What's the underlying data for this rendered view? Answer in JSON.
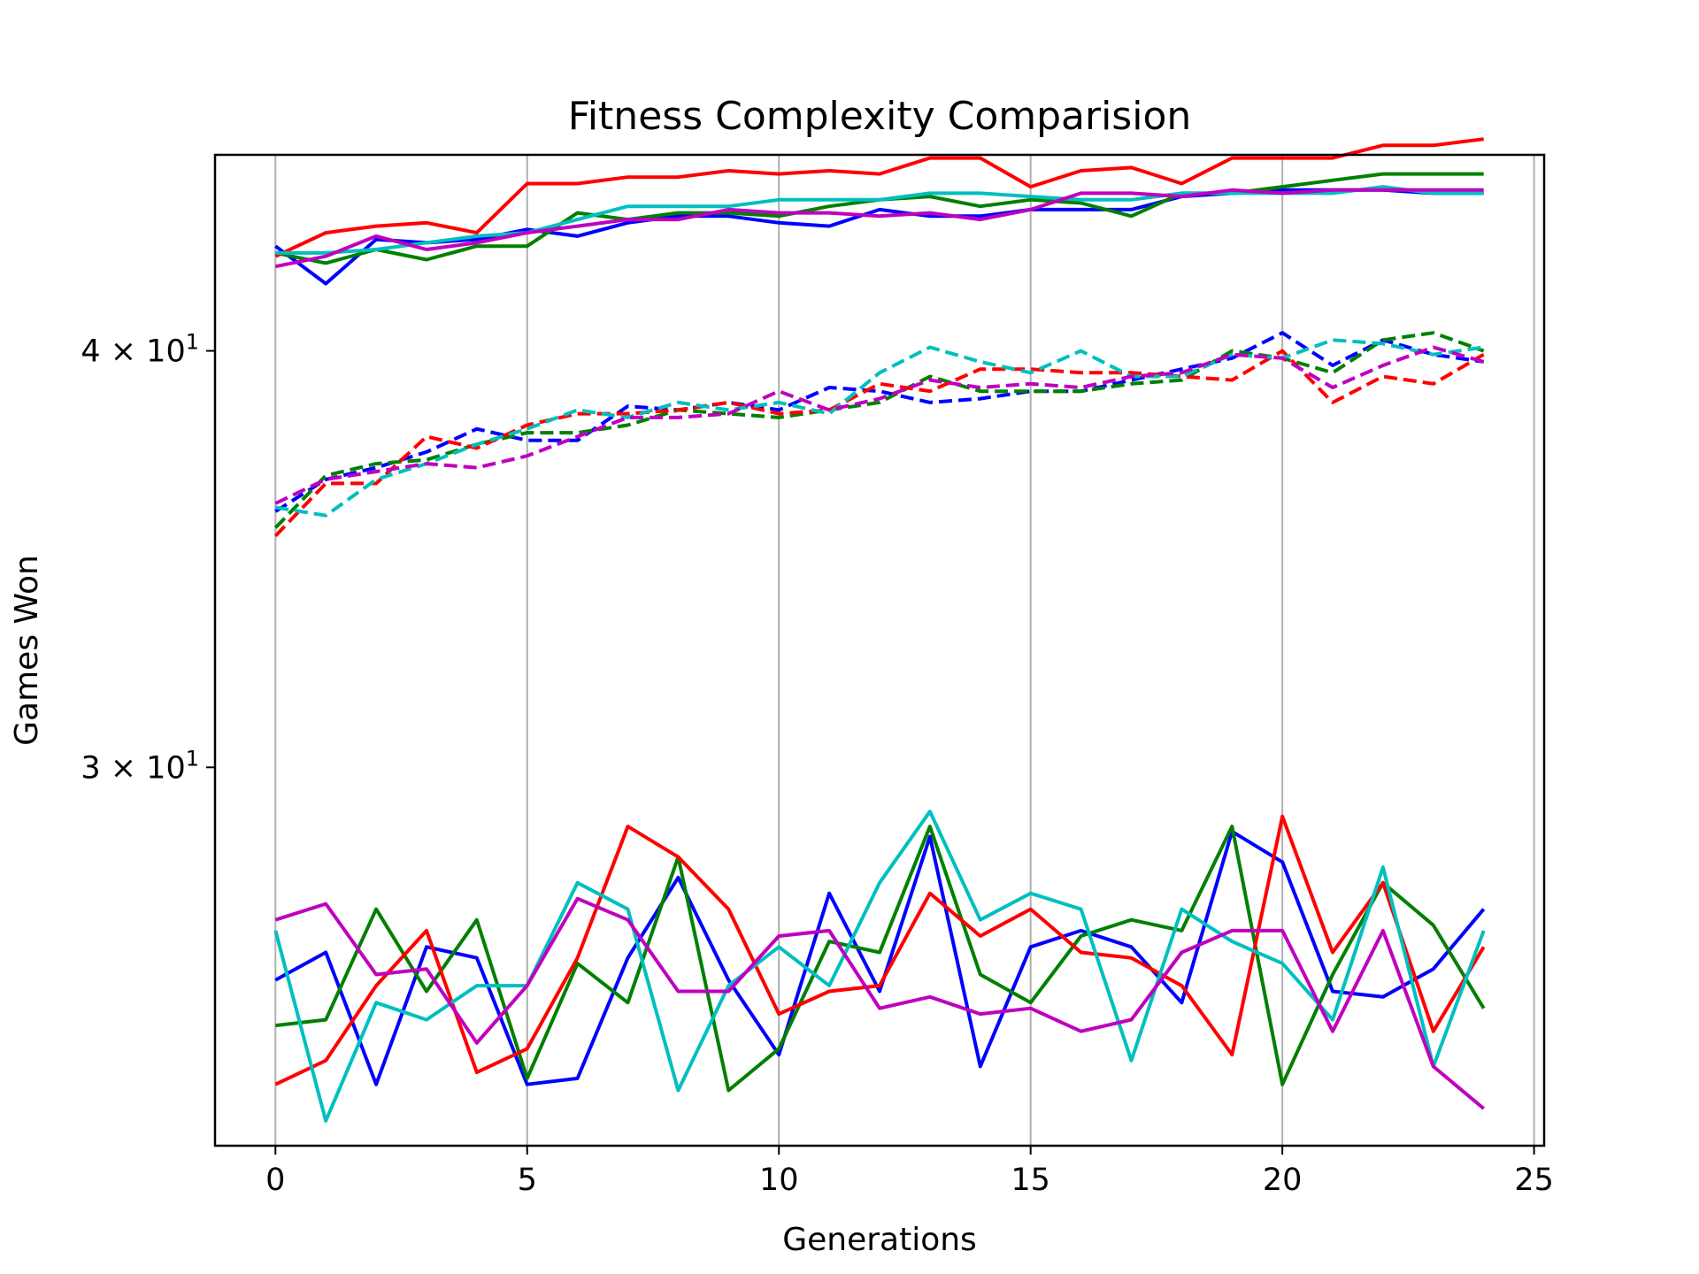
{
  "chart_data": {
    "type": "line",
    "title": "Fitness Complexity Comparision",
    "xlabel": "Generations",
    "ylabel": "Games Won",
    "xlim": [
      -1.2,
      25.2
    ],
    "ylim": [
      23.1,
      45.8
    ],
    "yscale": "log",
    "grid": "x-major",
    "x_ticks": [
      0,
      5,
      10,
      15,
      20,
      25
    ],
    "x_tick_labels": [
      "0",
      "5",
      "10",
      "15",
      "20",
      "25"
    ],
    "y_ticks": [
      {
        "value": 40,
        "mantissa": "4",
        "base": "10",
        "exp": "1"
      },
      {
        "value": 30,
        "mantissa": "3",
        "base": "10",
        "exp": "1"
      }
    ],
    "x": [
      0,
      1,
      2,
      3,
      4,
      5,
      6,
      7,
      8,
      9,
      10,
      11,
      12,
      13,
      14,
      15,
      16,
      17,
      18,
      19,
      20,
      21,
      22,
      23,
      24
    ],
    "series": [
      {
        "group": "top",
        "style": "solid",
        "color": "#0000ff",
        "values": [
          43.0,
          41.9,
          43.2,
          43.1,
          43.2,
          43.5,
          43.3,
          43.7,
          43.9,
          43.9,
          43.7,
          43.6,
          44.1,
          43.9,
          43.9,
          44.1,
          44.1,
          44.1,
          44.5,
          44.6,
          44.7,
          44.7,
          44.7,
          44.6,
          44.6
        ]
      },
      {
        "group": "top",
        "style": "solid",
        "color": "#008000",
        "values": [
          42.8,
          42.5,
          42.9,
          42.6,
          43.0,
          43.0,
          44.0,
          43.8,
          44.0,
          44.0,
          43.9,
          44.2,
          44.4,
          44.5,
          44.2,
          44.4,
          44.3,
          43.9,
          44.6,
          44.6,
          44.8,
          45.0,
          45.2,
          45.2,
          45.2
        ]
      },
      {
        "group": "top",
        "style": "solid",
        "color": "#ff0000",
        "values": [
          42.7,
          43.4,
          43.6,
          43.7,
          43.4,
          44.9,
          44.9,
          45.1,
          45.1,
          45.3,
          45.2,
          45.3,
          45.2,
          45.7,
          45.7,
          44.8,
          45.3,
          45.4,
          44.9,
          45.7,
          45.7,
          45.7,
          46.1,
          46.1,
          46.3
        ]
      },
      {
        "group": "top",
        "style": "solid",
        "color": "#00bfbf",
        "values": [
          42.8,
          42.8,
          42.9,
          43.1,
          43.3,
          43.4,
          43.8,
          44.2,
          44.2,
          44.2,
          44.4,
          44.4,
          44.4,
          44.6,
          44.6,
          44.5,
          44.4,
          44.4,
          44.6,
          44.6,
          44.6,
          44.6,
          44.8,
          44.6,
          44.6
        ]
      },
      {
        "group": "top",
        "style": "solid",
        "color": "#bf00bf",
        "values": [
          42.4,
          42.7,
          43.3,
          42.9,
          43.1,
          43.4,
          43.6,
          43.8,
          43.8,
          44.1,
          44.0,
          44.0,
          43.9,
          44.0,
          43.8,
          44.1,
          44.6,
          44.6,
          44.5,
          44.7,
          44.6,
          44.7,
          44.7,
          44.7,
          44.7
        ]
      },
      {
        "group": "middle",
        "style": "dashed",
        "color": "#0000ff",
        "values": [
          35.8,
          36.6,
          36.9,
          37.3,
          37.9,
          37.6,
          37.6,
          38.5,
          38.4,
          38.6,
          38.4,
          39.0,
          38.9,
          38.6,
          38.7,
          38.9,
          38.9,
          39.2,
          39.5,
          39.8,
          40.5,
          39.6,
          40.3,
          39.9,
          39.7
        ]
      },
      {
        "group": "middle",
        "style": "dashed",
        "color": "#008000",
        "values": [
          35.4,
          36.7,
          37.0,
          37.1,
          37.5,
          37.8,
          37.8,
          38.0,
          38.4,
          38.3,
          38.2,
          38.4,
          38.6,
          39.3,
          38.9,
          38.9,
          38.9,
          39.1,
          39.2,
          40.0,
          39.8,
          39.4,
          40.3,
          40.5,
          40.0
        ]
      },
      {
        "group": "middle",
        "style": "dashed",
        "color": "#ff0000",
        "values": [
          35.2,
          36.5,
          36.5,
          37.7,
          37.4,
          38.0,
          38.3,
          38.3,
          38.4,
          38.6,
          38.3,
          38.4,
          39.1,
          38.9,
          39.5,
          39.5,
          39.4,
          39.4,
          39.3,
          39.2,
          40.0,
          38.6,
          39.3,
          39.1,
          39.9
        ]
      },
      {
        "group": "middle",
        "style": "dashed",
        "color": "#00bfbf",
        "values": [
          35.9,
          35.7,
          36.6,
          37.0,
          37.5,
          37.9,
          38.4,
          38.2,
          38.6,
          38.4,
          38.6,
          38.3,
          39.4,
          40.1,
          39.7,
          39.4,
          40.0,
          39.3,
          39.3,
          39.9,
          39.8,
          40.3,
          40.2,
          39.9,
          40.1
        ]
      },
      {
        "group": "middle",
        "style": "dashed",
        "color": "#bf00bf",
        "values": [
          36.0,
          36.6,
          36.8,
          37.0,
          36.9,
          37.2,
          37.7,
          38.2,
          38.2,
          38.3,
          38.9,
          38.4,
          38.7,
          39.2,
          39.0,
          39.1,
          39.0,
          39.3,
          39.4,
          39.9,
          39.8,
          39.0,
          39.6,
          40.1,
          39.7
        ]
      },
      {
        "group": "bottom",
        "style": "solid",
        "color": "#0000ff",
        "values": [
          25.9,
          26.4,
          24.1,
          26.5,
          26.3,
          24.1,
          24.2,
          26.3,
          27.8,
          25.9,
          24.6,
          27.5,
          25.7,
          28.6,
          24.4,
          26.5,
          26.8,
          26.5,
          25.5,
          28.7,
          28.1,
          25.7,
          25.6,
          26.1,
          27.2
        ]
      },
      {
        "group": "bottom",
        "style": "solid",
        "color": "#008000",
        "values": [
          25.1,
          25.2,
          27.2,
          25.7,
          27.0,
          24.2,
          26.2,
          25.5,
          28.2,
          24.0,
          24.7,
          26.6,
          26.4,
          28.8,
          26.0,
          25.5,
          26.7,
          27.0,
          26.8,
          28.8,
          24.1,
          26.0,
          27.7,
          26.9,
          25.4
        ]
      },
      {
        "group": "bottom",
        "style": "solid",
        "color": "#ff0000",
        "values": [
          24.1,
          24.5,
          25.8,
          26.8,
          24.3,
          24.7,
          26.3,
          28.8,
          28.2,
          27.2,
          25.3,
          25.7,
          25.8,
          27.5,
          26.7,
          27.2,
          26.4,
          26.3,
          25.8,
          24.6,
          29.0,
          26.4,
          27.7,
          25.0,
          26.5
        ]
      },
      {
        "group": "bottom",
        "style": "solid",
        "color": "#00bfbf",
        "values": [
          26.8,
          23.5,
          25.5,
          25.2,
          25.8,
          25.8,
          27.7,
          27.2,
          24.0,
          25.8,
          26.5,
          25.8,
          27.7,
          29.1,
          27.0,
          27.5,
          27.2,
          24.5,
          27.2,
          26.6,
          26.2,
          25.2,
          28.0,
          24.4,
          26.8
        ]
      },
      {
        "group": "bottom",
        "style": "solid",
        "color": "#bf00bf",
        "values": [
          27.0,
          27.3,
          26.0,
          26.1,
          24.8,
          25.8,
          27.4,
          27.0,
          25.7,
          25.7,
          26.7,
          26.8,
          25.4,
          25.6,
          25.3,
          25.4,
          25.0,
          25.2,
          26.4,
          26.8,
          26.8,
          25.0,
          26.8,
          24.4,
          23.7
        ]
      }
    ]
  }
}
